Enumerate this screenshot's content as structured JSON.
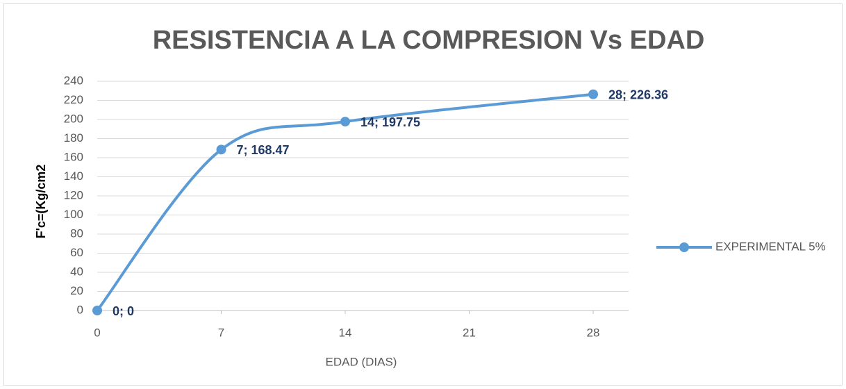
{
  "chart_data": {
    "type": "line",
    "title": "RESISTENCIA A LA COMPRESION  Vs EDAD",
    "x_label": "EDAD (DIAS)",
    "y_label": "F'c=(Kg/cm2",
    "x": [
      0,
      7,
      14,
      28
    ],
    "series": [
      {
        "name": "EXPERIMENTAL 5%",
        "color": "#5b9bd5",
        "values": [
          0,
          168.47,
          197.75,
          226.36
        ],
        "value_labels": [
          "0; 0",
          "7; 168.47",
          "14; 197.75",
          "28; 226.36"
        ]
      }
    ],
    "xlim": [
      0,
      30
    ],
    "xticks": [
      0,
      7,
      14,
      21,
      28
    ],
    "ylim": [
      0,
      240
    ],
    "yticks": [
      0,
      20,
      40,
      60,
      80,
      100,
      120,
      140,
      160,
      180,
      200,
      220,
      240
    ],
    "grid": true,
    "smooth": true,
    "legend": "right"
  }
}
